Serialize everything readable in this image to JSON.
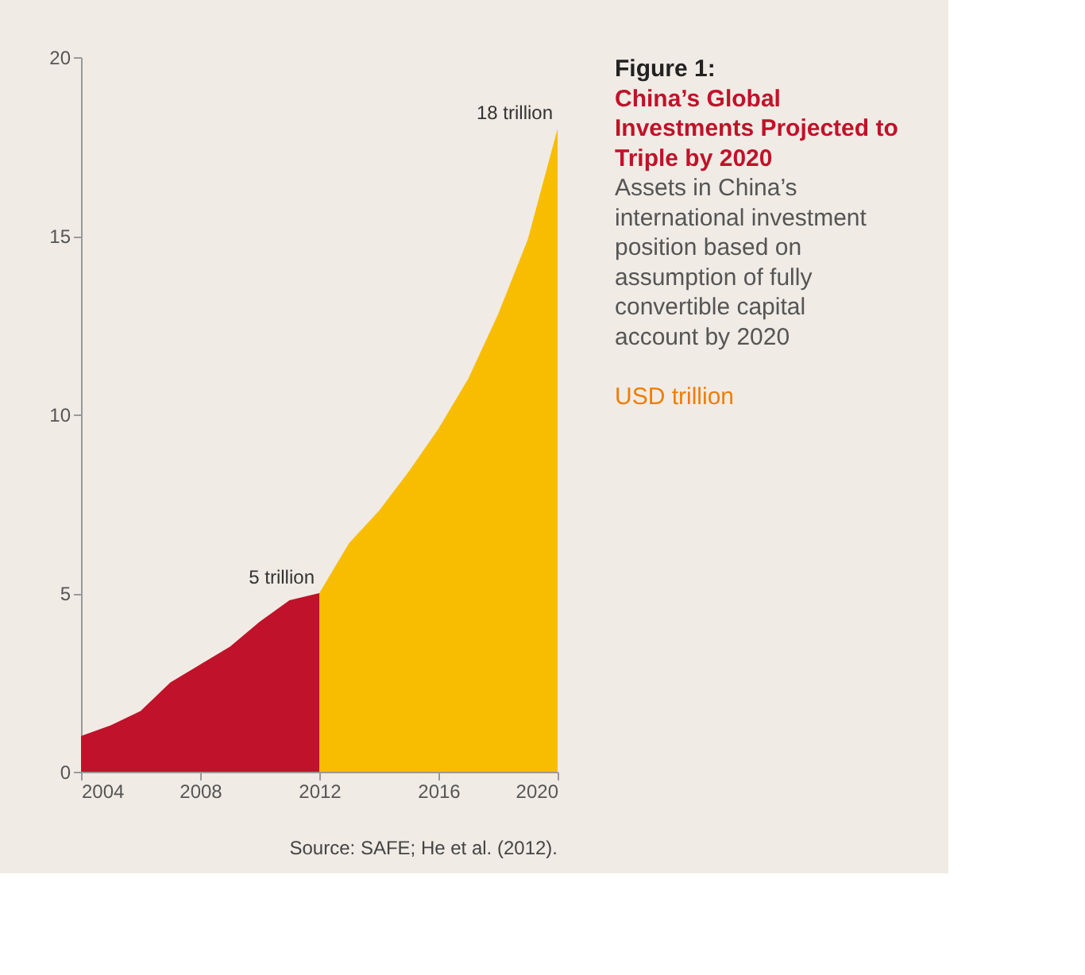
{
  "chart_data": {
    "type": "area",
    "title": "China’s Global Investments Projected to Triple by 2020",
    "subtitle": "Assets in China’s international investment position based on assumption of fully convertible capital account by 2020",
    "ylabel": "USD trillion",
    "series": [
      {
        "color": "#c0122a",
        "x": [
          2004,
          2005,
          2006,
          2007,
          2008,
          2009,
          2010,
          2011,
          2012
        ],
        "values": [
          1.0,
          1.3,
          1.7,
          2.5,
          3.0,
          3.5,
          4.2,
          4.8,
          5.0
        ]
      },
      {
        "color": "#f8bd00",
        "x": [
          2012,
          2013,
          2014,
          2015,
          2016,
          2017,
          2018,
          2019,
          2020
        ],
        "values": [
          5.0,
          6.4,
          7.3,
          8.4,
          9.6,
          11.0,
          12.8,
          14.9,
          18.0
        ]
      }
    ],
    "xlim": [
      2004,
      2020
    ],
    "xticks": [
      2004,
      2008,
      2012,
      2016,
      2020
    ],
    "ylim": [
      0,
      20
    ],
    "yticks": [
      0,
      5,
      10,
      15,
      20
    ],
    "grid": false,
    "annotations": [
      "Figure 1:",
      {
        "text": "18 trillion",
        "x": 2020,
        "y": 18
      },
      {
        "text": "5 trillion",
        "x": 2012,
        "y": 5
      },
      "Source: SAFE; He et al. (2012)."
    ]
  }
}
